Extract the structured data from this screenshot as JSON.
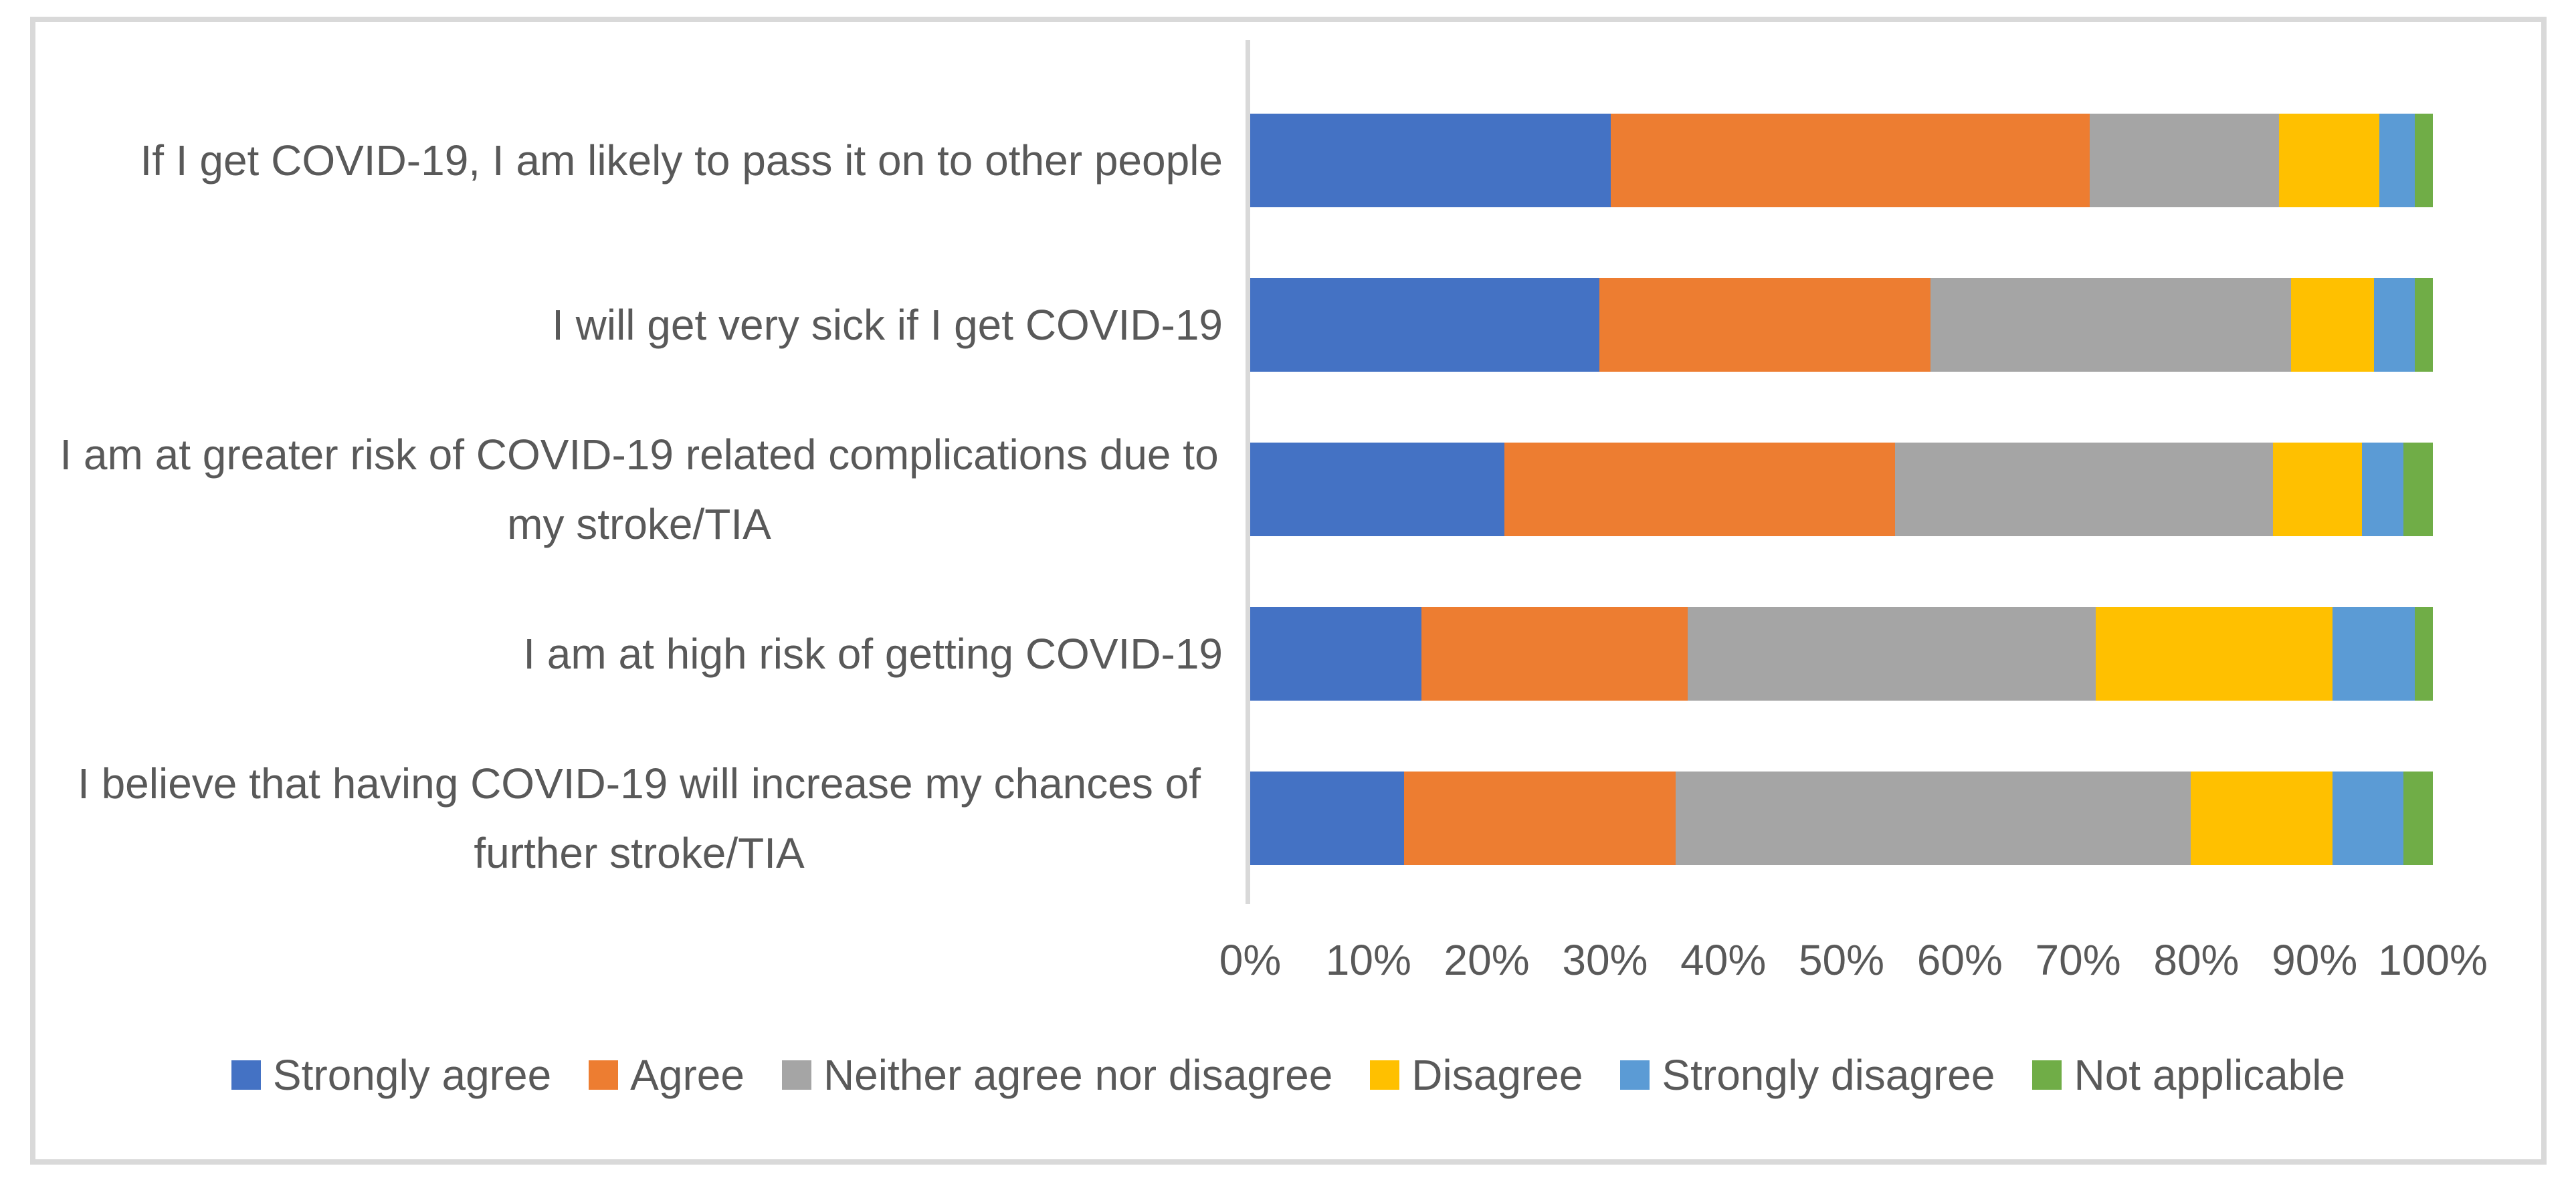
{
  "chart_data": {
    "type": "bar",
    "orientation": "horizontal",
    "stacked": true,
    "unit": "percent",
    "title": "",
    "xlabel": "",
    "ylabel": "",
    "grid": false,
    "legend_position": "bottom",
    "categories": [
      "If I get COVID-19, I am likely to pass it on to other people",
      "I will get very sick if I get COVID-19",
      "I am at greater risk of COVID-19 related complications due to my stroke/TIA",
      "I am at high risk of getting COVID-19",
      "I believe that having COVID-19 will increase my chances of further stroke/TIA"
    ],
    "series": [
      {
        "name": "Strongly agree",
        "color": "#4472C4",
        "values": [
          30.5,
          29.5,
          21.5,
          14.5,
          13.0
        ]
      },
      {
        "name": "Agree",
        "color": "#ED7D31",
        "values": [
          40.5,
          28.0,
          33.0,
          22.5,
          23.0
        ]
      },
      {
        "name": "Neither agree nor disagree",
        "color": "#A5A5A5",
        "values": [
          16.0,
          30.5,
          32.0,
          34.5,
          43.5
        ]
      },
      {
        "name": "Disagree",
        "color": "#FFC000",
        "values": [
          8.5,
          7.0,
          7.5,
          20.0,
          12.0
        ]
      },
      {
        "name": "Strongly disagree",
        "color": "#5B9BD5",
        "values": [
          3.0,
          3.5,
          3.5,
          7.0,
          6.0
        ]
      },
      {
        "name": "Not applicable",
        "color": "#70AD47",
        "values": [
          1.5,
          1.5,
          2.5,
          1.5,
          2.5
        ]
      }
    ],
    "x_axis": {
      "min": 0,
      "max": 100,
      "tick_step": 10,
      "ticks": [
        "0%",
        "10%",
        "20%",
        "30%",
        "40%",
        "50%",
        "60%",
        "70%",
        "80%",
        "90%",
        "100%"
      ]
    },
    "colors": {
      "text": "#595959",
      "axis_line": "#D9D9D9",
      "chart_border": "#D9D9D9",
      "background": "#FFFFFF"
    }
  }
}
